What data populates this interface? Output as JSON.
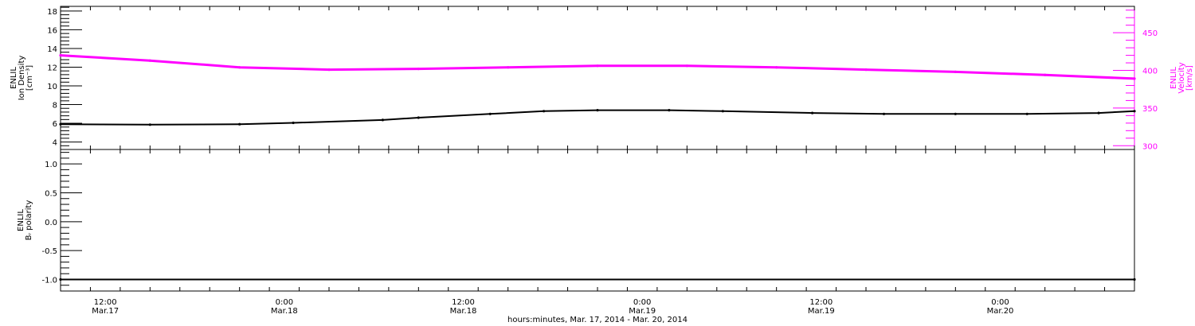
{
  "colors": {
    "density": "#000000",
    "velocity": "#ff00ff",
    "bz": "#000000",
    "axis": "#000000"
  },
  "chart_data": [
    {
      "type": "line",
      "panel": "top",
      "ylabel_lines": [
        "ENLIL",
        "Ion Density",
        "[cm⁻³]"
      ],
      "ylim": [
        3.2,
        18.5
      ],
      "yticks": [
        4,
        6,
        8,
        10,
        12,
        14,
        16,
        18
      ],
      "ytick_labels": [
        "4",
        "6",
        "8",
        "10",
        "12",
        "14",
        "16",
        "18"
      ],
      "y2label_lines": [
        "ENLIL",
        "Velocity",
        "[km/s]"
      ],
      "y2lim": [
        295,
        485
      ],
      "y2ticks": [
        300,
        350,
        400,
        450
      ],
      "y2tick_labels": [
        "300",
        "350",
        "400",
        "450"
      ],
      "series": [
        {
          "key": "density",
          "axis": "left",
          "x": [
            0,
            0.25,
            0.5,
            0.65,
            0.9,
            1.0,
            1.2,
            1.35,
            1.5,
            1.7,
            1.85,
            2.1,
            2.3,
            2.5,
            2.7,
            2.9,
            3.0
          ],
          "y": [
            5.9,
            5.85,
            5.9,
            6.05,
            6.35,
            6.6,
            7.0,
            7.3,
            7.4,
            7.4,
            7.3,
            7.1,
            7.0,
            7.0,
            7.0,
            7.1,
            7.3
          ]
        },
        {
          "key": "velocity",
          "axis": "right",
          "x": [
            0,
            0.25,
            0.5,
            0.75,
            1.0,
            1.25,
            1.5,
            1.75,
            2.0,
            2.25,
            2.5,
            2.75,
            3.0
          ],
          "y": [
            420,
            413,
            404,
            401,
            402,
            404,
            406,
            406,
            404,
            401,
            398,
            394,
            389
          ]
        }
      ]
    },
    {
      "type": "line",
      "panel": "bottom",
      "ylabel_lines": [
        "ENLIL",
        "Bᵣ polarity"
      ],
      "ylim": [
        -1.2,
        1.25
      ],
      "yticks": [
        -1.0,
        -0.5,
        0.0,
        0.5,
        1.0
      ],
      "ytick_labels": [
        "-1.0",
        "-0.5",
        "0.0",
        "0.5",
        "1.0"
      ],
      "series": [
        {
          "key": "bz",
          "axis": "left",
          "x": [
            0,
            3.0
          ],
          "y": [
            -1.0,
            -1.0
          ]
        }
      ]
    }
  ],
  "x_axis": {
    "xlim": [
      0,
      3.0
    ],
    "ticks": [
      0.125,
      0.625,
      1.125,
      1.625,
      2.125,
      2.625
    ],
    "tick_time_labels": [
      "12:00",
      "0:00",
      "12:00",
      "0:00",
      "12:00",
      "0:00"
    ],
    "tick_date_labels": [
      "Mar.17",
      "Mar.18",
      "Mar.18",
      "Mar.19",
      "Mar.19",
      "Mar.20"
    ],
    "xlabel": "hours:minutes, Mar. 17, 2014 - Mar. 20, 2014"
  }
}
